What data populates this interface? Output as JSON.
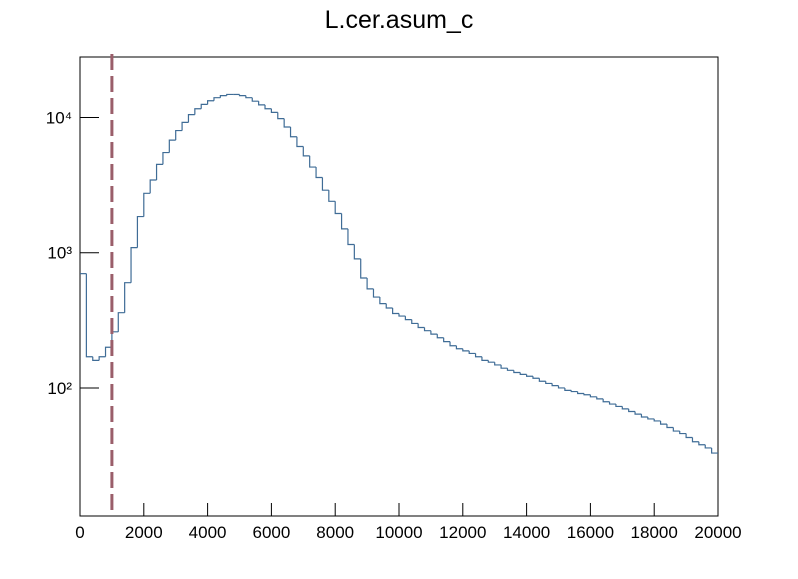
{
  "chart_data": {
    "type": "histogram",
    "title": "L.cer.asum_c",
    "color": "#3f6c96",
    "log_y": true,
    "grid": false,
    "bins": [
      0,
      200,
      400,
      600,
      800,
      1000,
      1200,
      1400,
      1600,
      1800,
      2000,
      2200,
      2400,
      2600,
      2800,
      3000,
      3200,
      3400,
      3600,
      3800,
      4000,
      4200,
      4400,
      4600,
      4800,
      5000,
      5200,
      5400,
      5600,
      5800,
      6000,
      6200,
      6400,
      6600,
      6800,
      7000,
      7200,
      7400,
      7600,
      7800,
      8000,
      8200,
      8400,
      8600,
      8800,
      9000,
      9200,
      9400,
      9600,
      9800,
      10000,
      10200,
      10400,
      10600,
      10800,
      11000,
      11200,
      11400,
      11600,
      11800,
      12000,
      12200,
      12400,
      12600,
      12800,
      13000,
      13200,
      13400,
      13600,
      13800,
      14000,
      14200,
      14400,
      14600,
      14800,
      15000,
      15200,
      15400,
      15600,
      15800,
      16000,
      16200,
      16400,
      16600,
      16800,
      17000,
      17200,
      17400,
      17600,
      17800,
      18000,
      18200,
      18400,
      18600,
      18800,
      19000,
      19200,
      19400,
      19600,
      19800,
      20000
    ],
    "values": [
      700,
      170,
      160,
      170,
      200,
      260,
      360,
      600,
      1090,
      1850,
      2750,
      3450,
      4500,
      5500,
      6800,
      8000,
      9200,
      10500,
      11600,
      12500,
      13300,
      14000,
      14500,
      14800,
      14800,
      14500,
      14000,
      13200,
      12400,
      11600,
      10900,
      9800,
      8500,
      7200,
      6100,
      5200,
      4300,
      3600,
      2900,
      2400,
      1950,
      1500,
      1150,
      900,
      650,
      540,
      470,
      420,
      390,
      355,
      340,
      320,
      300,
      280,
      265,
      250,
      235,
      220,
      205,
      195,
      188,
      180,
      170,
      160,
      155,
      148,
      140,
      135,
      130,
      126,
      122,
      118,
      112,
      108,
      104,
      100,
      96,
      94,
      91,
      89,
      86,
      83,
      79,
      76,
      73,
      70,
      67,
      64,
      61,
      59,
      57,
      54,
      51,
      48,
      46,
      43,
      40,
      38,
      36,
      33
    ],
    "xlim": [
      0,
      20000
    ],
    "xticks": [
      0,
      2000,
      4000,
      6000,
      8000,
      10000,
      12000,
      14000,
      16000,
      18000,
      20000
    ],
    "ylim": [
      11.3,
      28000
    ],
    "yticks": [
      {
        "value": 100,
        "label": "10²"
      },
      {
        "value": 1000,
        "label": "10³"
      },
      {
        "value": 10000,
        "label": "10⁴"
      }
    ],
    "vline": {
      "x": 1000,
      "color": "#9a5e6a"
    }
  }
}
